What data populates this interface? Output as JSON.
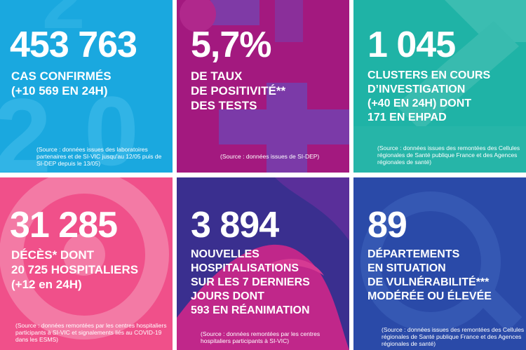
{
  "tiles": [
    {
      "number": "453 763",
      "lines": [
        "CAS CONFIRMÉS",
        "(+10 569 EN 24H)"
      ],
      "source": "(Source : données issues des laboratoires partenaires et de SI-VIC jusqu'au 12/05 puis de SI-DEP depuis le 13/05)",
      "color": "#1aa8df"
    },
    {
      "number": "5,7%",
      "lines": [
        "DE TAUX",
        "DE POSITIVITÉ**",
        "DES TESTS"
      ],
      "source": "(Source : données issues de SI-DEP)",
      "color": "#a3197f"
    },
    {
      "number": "1 045",
      "lines": [
        "CLUSTERS EN COURS",
        "D’INVESTIGATION",
        "(+40 EN 24H) DONT",
        "171 EN EHPAD"
      ],
      "source": "(Source : données issues des remontées des Cellules régionales de Santé publique France et des Agences régionales de santé)",
      "color": "#1fb3a6"
    },
    {
      "number": "31 285",
      "lines": [
        "DÉCÈS* DONT",
        "20 725 HOSPITALIERS",
        "(+12 en 24H)"
      ],
      "source": "(Source : données remontées par les centres hospitaliers participants à SI-VIC et signalements liés au COVID-19 dans les ESMS)",
      "color": "#f0508a"
    },
    {
      "number": "3 894",
      "lines": [
        "NOUVELLES",
        "HOSPITALISATIONS",
        "SUR LES 7 DERNIERS",
        "JOURS DONT",
        "593 EN RÉANIMATION"
      ],
      "source": "(Source : données remontées par les centres hospitaliers participants à SI-VIC)",
      "color": "#3a2f8f"
    },
    {
      "number": "89",
      "lines": [
        "DÉPARTEMENTS",
        "EN SITUATION",
        "DE VULNÉRABILITÉ***",
        "MODÉRÉE OU ÉLEVÉE"
      ],
      "source": "(Source : données issues des remontées des Cellules régionales de Santé publique France et des Agences régionales de santé)",
      "color": "#2a4aa8"
    }
  ]
}
